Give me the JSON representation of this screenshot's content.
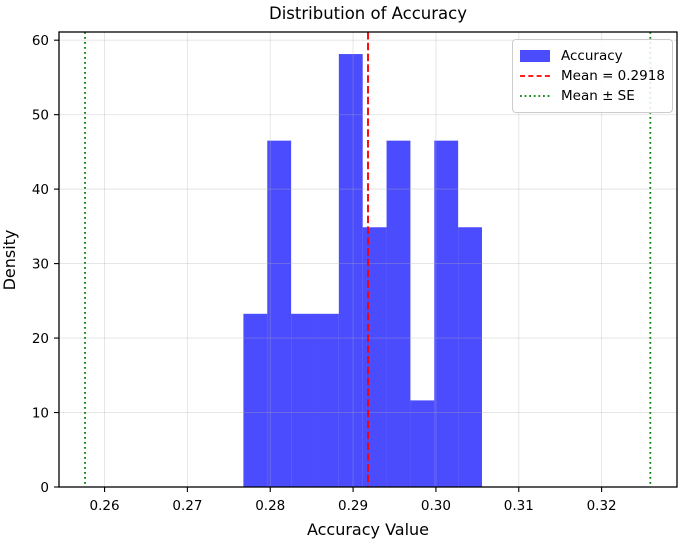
{
  "figure_title": "Distribution of Accuracy",
  "chart_data": {
    "type": "bar",
    "subtype": "histogram",
    "title": "Distribution of Accuracy",
    "xlabel": "Accuracy Value",
    "ylabel": "Density",
    "xlim": [
      0.2545,
      0.3291
    ],
    "ylim": [
      0,
      61.1
    ],
    "grid": true,
    "grid_color": "rgba(176,176,176,0.35)",
    "xticks": {
      "values": [
        0.26,
        0.27,
        0.28,
        0.29,
        0.3,
        0.31,
        0.32
      ],
      "labels": [
        "0.26",
        "0.27",
        "0.28",
        "0.29",
        "0.30",
        "0.31",
        "0.32"
      ]
    },
    "yticks": {
      "values": [
        0,
        10,
        20,
        30,
        40,
        50,
        60
      ],
      "labels": [
        "0",
        "10",
        "20",
        "30",
        "40",
        "50",
        "60"
      ]
    },
    "histogram": {
      "name": "Accuracy",
      "color": "rgba(0,0,255,0.7)",
      "bin_edges": [
        0.27676,
        0.27964,
        0.28252,
        0.2854,
        0.28828,
        0.29116,
        0.29404,
        0.29692,
        0.2998,
        0.30268,
        0.30556
      ],
      "densities": [
        23.26,
        46.51,
        23.26,
        23.26,
        58.14,
        34.88,
        46.51,
        11.63,
        46.51,
        34.88
      ]
    },
    "mean_line": {
      "x": 0.2918,
      "color": "#ff0000",
      "style": "dashed",
      "label": "Mean = 0.2918"
    },
    "se_lines": {
      "xs": [
        0.25764,
        0.32588
      ],
      "color": "#008000",
      "style": "dotted",
      "label": "Mean ± SE"
    },
    "legend_position": "upper right",
    "legend": {
      "items": [
        {
          "swatch": "patch",
          "label": "Accuracy"
        },
        {
          "swatch": "dashed-line",
          "label": "Mean = 0.2918"
        },
        {
          "swatch": "dotted-line",
          "label": "Mean ± SE"
        }
      ]
    }
  }
}
